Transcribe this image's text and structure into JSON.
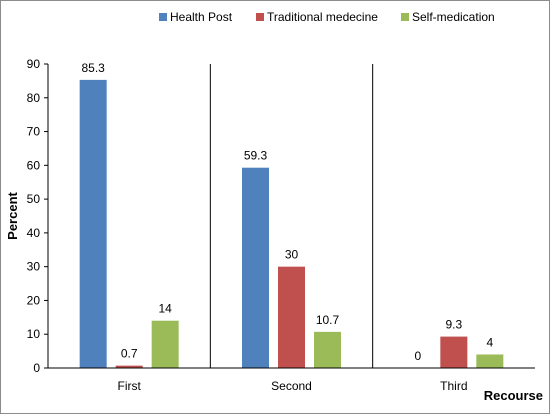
{
  "chart_data": {
    "type": "bar",
    "categories": [
      "First",
      "Second",
      "Third"
    ],
    "series": [
      {
        "name": "Health Post",
        "color": "#4f81bd",
        "values": [
          85.3,
          59.3,
          0
        ]
      },
      {
        "name": "Traditional medecine",
        "color": "#c0504d",
        "values": [
          0.7,
          30,
          9.3
        ]
      },
      {
        "name": "Self-medication",
        "color": "#9bbb59",
        "values": [
          14,
          10.7,
          4
        ]
      }
    ],
    "data_labels": [
      [
        "85.3",
        "59.3",
        "0"
      ],
      [
        "0.7",
        "30",
        "9.3"
      ],
      [
        "14",
        "10.7",
        "4"
      ]
    ],
    "xlabel": "Recourse",
    "ylabel": "Percent",
    "ylim": [
      0,
      90
    ],
    "yticks": [
      "0",
      "10",
      "20",
      "30",
      "40",
      "50",
      "60",
      "70",
      "80",
      "90"
    ],
    "grid": false,
    "legend_position": "top",
    "category_separators": true
  }
}
